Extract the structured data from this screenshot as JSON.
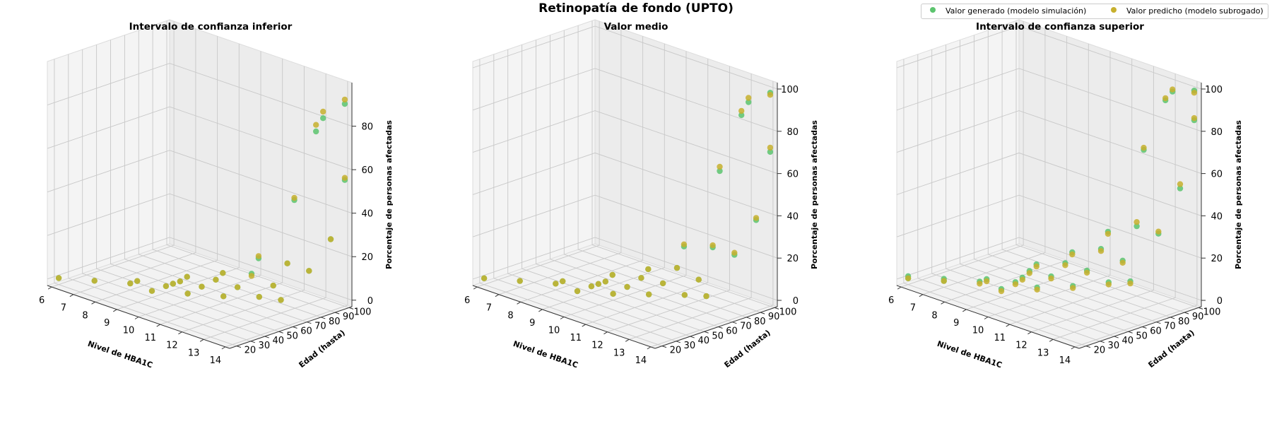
{
  "figure": {
    "title": "Retinopatía de fondo (UPTO)"
  },
  "legend": {
    "entries": [
      {
        "label": "Valor generado (modelo simulación)",
        "color": "#5cc46e"
      },
      {
        "label": "Valor predicho (modelo subrogado)",
        "color": "#c7b02e"
      }
    ]
  },
  "chart_data": [
    {
      "type": "scatter",
      "title": "Intervalo de confianza inferior",
      "xlabel": "Nivel de HBA1C",
      "ylabel": "Edad (hasta)",
      "zlabel": "Porcentaje de personas afectadas",
      "x_ticks": [
        "6",
        "7",
        "8",
        "9",
        "10",
        "11",
        "12",
        "13",
        "14"
      ],
      "y_ticks": [
        "20",
        "30",
        "40",
        "50",
        "60",
        "70",
        "80",
        "90",
        "100"
      ],
      "z_ticks": [
        "0",
        "20",
        "40",
        "60",
        "80"
      ],
      "xlim": [
        5.8,
        14.2
      ],
      "ylim": [
        15,
        102
      ],
      "zlim": [
        -3,
        100
      ],
      "series": [
        {
          "name": "Valor generado (modelo simulación)",
          "points": [
            [
              6,
              20,
              0
            ],
            [
              7,
              30,
              0
            ],
            [
              8,
              40,
              0
            ],
            [
              8,
              45,
              0
            ],
            [
              9,
              40,
              0
            ],
            [
              9,
              50,
              0
            ],
            [
              9,
              55,
              0
            ],
            [
              9,
              60,
              0
            ],
            [
              10,
              50,
              0
            ],
            [
              10,
              60,
              1
            ],
            [
              10,
              70,
              2
            ],
            [
              11,
              60,
              0
            ],
            [
              11,
              70,
              2
            ],
            [
              11,
              80,
              6
            ],
            [
              12,
              70,
              1
            ],
            [
              12,
              80,
              4
            ],
            [
              12,
              90,
              12
            ],
            [
              13,
              70,
              3
            ],
            [
              13,
              90,
              12
            ],
            [
              14,
              90,
              30
            ],
            [
              14,
              100,
              55
            ],
            [
              9,
              65,
              1
            ],
            [
              10,
              75,
              4
            ],
            [
              11,
              85,
              12
            ],
            [
              12,
              95,
              40
            ],
            [
              13,
              95,
              75
            ],
            [
              13,
              100,
              80
            ],
            [
              14,
              100,
              90
            ]
          ]
        },
        {
          "name": "Valor predicho (modelo subrogado)",
          "points": [
            [
              6,
              20,
              0
            ],
            [
              7,
              30,
              0
            ],
            [
              8,
              40,
              0
            ],
            [
              8,
              45,
              0
            ],
            [
              9,
              40,
              0
            ],
            [
              9,
              50,
              0
            ],
            [
              9,
              55,
              0
            ],
            [
              9,
              60,
              0
            ],
            [
              10,
              50,
              0
            ],
            [
              10,
              60,
              1
            ],
            [
              10,
              70,
              2
            ],
            [
              11,
              60,
              0
            ],
            [
              11,
              70,
              2
            ],
            [
              11,
              80,
              5
            ],
            [
              12,
              70,
              1
            ],
            [
              12,
              80,
              4
            ],
            [
              12,
              90,
              12
            ],
            [
              13,
              70,
              3
            ],
            [
              13,
              90,
              12
            ],
            [
              14,
              90,
              30
            ],
            [
              14,
              100,
              56
            ],
            [
              9,
              65,
              1
            ],
            [
              10,
              75,
              4
            ],
            [
              11,
              85,
              13
            ],
            [
              12,
              95,
              41
            ],
            [
              13,
              95,
              78
            ],
            [
              13,
              100,
              83
            ],
            [
              14,
              100,
              92
            ]
          ]
        }
      ]
    },
    {
      "type": "scatter",
      "title": "Valor medio",
      "xlabel": "Nivel de HBA1C",
      "ylabel": "Edad (hasta)",
      "zlabel": "Porcentaje de personas afectadas",
      "x_ticks": [
        "6",
        "7",
        "8",
        "9",
        "10",
        "11",
        "12",
        "13",
        "14"
      ],
      "y_ticks": [
        "20",
        "30",
        "40",
        "50",
        "60",
        "70",
        "80",
        "90",
        "100"
      ],
      "z_ticks": [
        "0",
        "20",
        "40",
        "60",
        "80",
        "100"
      ],
      "xlim": [
        5.8,
        14.2
      ],
      "ylim": [
        15,
        102
      ],
      "zlim": [
        -3,
        103
      ],
      "series": [
        {
          "name": "Valor generado (modelo simulación)",
          "points": [
            [
              6,
              20,
              0
            ],
            [
              7,
              30,
              0
            ],
            [
              8,
              40,
              0
            ],
            [
              8,
              45,
              0
            ],
            [
              9,
              40,
              0
            ],
            [
              9,
              50,
              0
            ],
            [
              9,
              55,
              0
            ],
            [
              9,
              60,
              0
            ],
            [
              10,
              50,
              0
            ],
            [
              10,
              60,
              1
            ],
            [
              10,
              70,
              3
            ],
            [
              11,
              60,
              1
            ],
            [
              11,
              70,
              4
            ],
            [
              11,
              80,
              9
            ],
            [
              12,
              70,
              2
            ],
            [
              12,
              80,
              7
            ],
            [
              12,
              90,
              20
            ],
            [
              13,
              70,
              5
            ],
            [
              13,
              90,
              20
            ],
            [
              14,
              90,
              40
            ],
            [
              14,
              100,
              70
            ],
            [
              9,
              65,
              2
            ],
            [
              10,
              75,
              6
            ],
            [
              11,
              85,
              18
            ],
            [
              12,
              95,
              55
            ],
            [
              13,
              95,
              85
            ],
            [
              13,
              100,
              90
            ],
            [
              14,
              100,
              98
            ]
          ]
        },
        {
          "name": "Valor predicho (modelo subrogado)",
          "points": [
            [
              6,
              20,
              0
            ],
            [
              7,
              30,
              0
            ],
            [
              8,
              40,
              0
            ],
            [
              8,
              45,
              0
            ],
            [
              9,
              40,
              0
            ],
            [
              9,
              50,
              0
            ],
            [
              9,
              55,
              0
            ],
            [
              9,
              60,
              0
            ],
            [
              10,
              50,
              0
            ],
            [
              10,
              60,
              1
            ],
            [
              10,
              70,
              3
            ],
            [
              11,
              60,
              1
            ],
            [
              11,
              70,
              4
            ],
            [
              11,
              80,
              9
            ],
            [
              12,
              70,
              2
            ],
            [
              12,
              80,
              7
            ],
            [
              12,
              90,
              21
            ],
            [
              13,
              70,
              5
            ],
            [
              13,
              90,
              21
            ],
            [
              14,
              90,
              41
            ],
            [
              14,
              100,
              72
            ],
            [
              9,
              65,
              2
            ],
            [
              10,
              75,
              6
            ],
            [
              11,
              85,
              19
            ],
            [
              12,
              95,
              57
            ],
            [
              13,
              95,
              87
            ],
            [
              13,
              100,
              92
            ],
            [
              14,
              100,
              97
            ]
          ]
        }
      ]
    },
    {
      "type": "scatter",
      "title": "Intervalo de confianza superior",
      "xlabel": "Nivel de HBA1C",
      "ylabel": "Edad (hasta)",
      "zlabel": "Porcentaje de personas afectadas",
      "x_ticks": [
        "6",
        "7",
        "8",
        "9",
        "10",
        "11",
        "12",
        "13",
        "14"
      ],
      "y_ticks": [
        "20",
        "30",
        "40",
        "50",
        "60",
        "70",
        "80",
        "90",
        "100"
      ],
      "z_ticks": [
        "0",
        "20",
        "40",
        "60",
        "80",
        "100"
      ],
      "xlim": [
        5.8,
        14.2
      ],
      "ylim": [
        15,
        102
      ],
      "zlim": [
        -3,
        103
      ],
      "series": [
        {
          "name": "Valor generado (modelo simulación)",
          "points": [
            [
              6,
              20,
              0
            ],
            [
              7,
              30,
              0
            ],
            [
              8,
              40,
              1
            ],
            [
              8,
              45,
              1
            ],
            [
              9,
              40,
              1
            ],
            [
              9,
              50,
              2
            ],
            [
              9,
              55,
              3
            ],
            [
              9,
              60,
              5
            ],
            [
              10,
              50,
              3
            ],
            [
              10,
              60,
              6
            ],
            [
              10,
              70,
              10
            ],
            [
              11,
              60,
              5
            ],
            [
              11,
              70,
              10
            ],
            [
              11,
              80,
              18
            ],
            [
              12,
              70,
              8
            ],
            [
              12,
              80,
              16
            ],
            [
              12,
              90,
              30
            ],
            [
              13,
              70,
              12
            ],
            [
              13,
              90,
              30
            ],
            [
              14,
              90,
              55
            ],
            [
              14,
              100,
              85
            ],
            [
              9,
              65,
              7
            ],
            [
              10,
              75,
              14
            ],
            [
              11,
              85,
              25
            ],
            [
              12,
              95,
              65
            ],
            [
              13,
              95,
              92
            ],
            [
              13,
              100,
              95
            ],
            [
              14,
              100,
              99
            ],
            [
              6,
              20,
              1
            ],
            [
              7,
              30,
              1
            ]
          ]
        },
        {
          "name": "Valor predicho (modelo subrogado)",
          "points": [
            [
              6,
              20,
              0
            ],
            [
              7,
              30,
              0
            ],
            [
              8,
              40,
              0
            ],
            [
              8,
              45,
              0
            ],
            [
              9,
              40,
              0
            ],
            [
              9,
              50,
              1
            ],
            [
              9,
              55,
              2
            ],
            [
              9,
              60,
              4
            ],
            [
              10,
              50,
              2
            ],
            [
              10,
              60,
              5
            ],
            [
              10,
              70,
              9
            ],
            [
              11,
              60,
              4
            ],
            [
              11,
              70,
              9
            ],
            [
              11,
              80,
              17
            ],
            [
              12,
              70,
              7
            ],
            [
              12,
              80,
              15
            ],
            [
              12,
              90,
              32
            ],
            [
              13,
              70,
              11
            ],
            [
              13,
              90,
              31
            ],
            [
              14,
              90,
              57
            ],
            [
              14,
              100,
              86
            ],
            [
              9,
              65,
              6
            ],
            [
              10,
              75,
              13
            ],
            [
              11,
              85,
              24
            ],
            [
              12,
              95,
              66
            ],
            [
              13,
              95,
              93
            ],
            [
              13,
              100,
              96
            ],
            [
              14,
              100,
              98
            ]
          ]
        }
      ]
    }
  ]
}
